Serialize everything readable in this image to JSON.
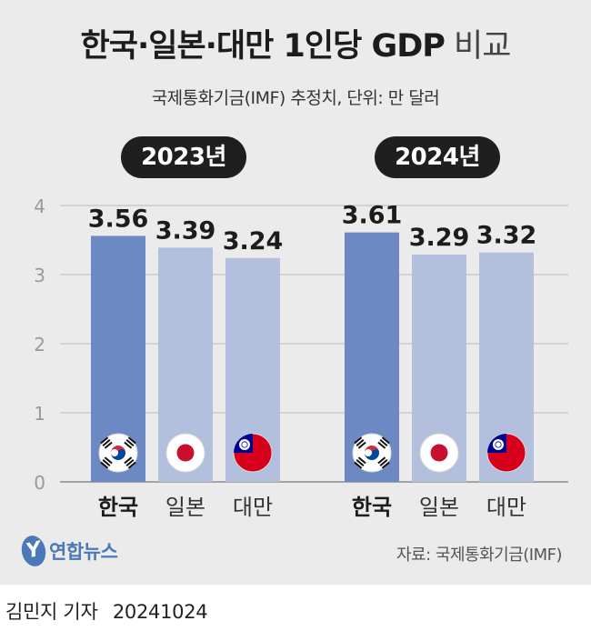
{
  "header": {
    "title_main": "한국·일본·대만 1인당 GDP",
    "title_suffix": "비교",
    "subtitle": "국제통화기금(IMF) 추정치, 단위: 만 달러"
  },
  "source": "자료: 국제통화기금(IMF)",
  "brand": {
    "logo_mark": "Y",
    "logo_text": "연합뉴스"
  },
  "footer": {
    "reporter": "김민지 기자",
    "date": "20241024"
  },
  "colors": {
    "korea_bar": "#6d89c4",
    "other_bar": "#b3c0dd",
    "background": "#ebebeb",
    "grid": "#b9b9b9"
  },
  "chart_data": {
    "type": "bar",
    "title": "한국·일본·대만 1인당 GDP 비교",
    "ylabel": "만 달러",
    "ylim": [
      0,
      4
    ],
    "yticks": [
      "0",
      "1",
      "2",
      "3",
      "4"
    ],
    "grid": true,
    "groups": [
      {
        "year_label": "2023년",
        "bars": [
          {
            "category": "한국",
            "value": 3.56,
            "label": "3.56",
            "highlight": true,
            "flag": "korea"
          },
          {
            "category": "일본",
            "value": 3.39,
            "label": "3.39",
            "highlight": false,
            "flag": "japan"
          },
          {
            "category": "대만",
            "value": 3.24,
            "label": "3.24",
            "highlight": false,
            "flag": "taiwan"
          }
        ]
      },
      {
        "year_label": "2024년",
        "bars": [
          {
            "category": "한국",
            "value": 3.61,
            "label": "3.61",
            "highlight": true,
            "flag": "korea"
          },
          {
            "category": "일본",
            "value": 3.29,
            "label": "3.29",
            "highlight": false,
            "flag": "japan"
          },
          {
            "category": "대만",
            "value": 3.32,
            "label": "3.32",
            "highlight": false,
            "flag": "taiwan"
          }
        ]
      }
    ]
  }
}
